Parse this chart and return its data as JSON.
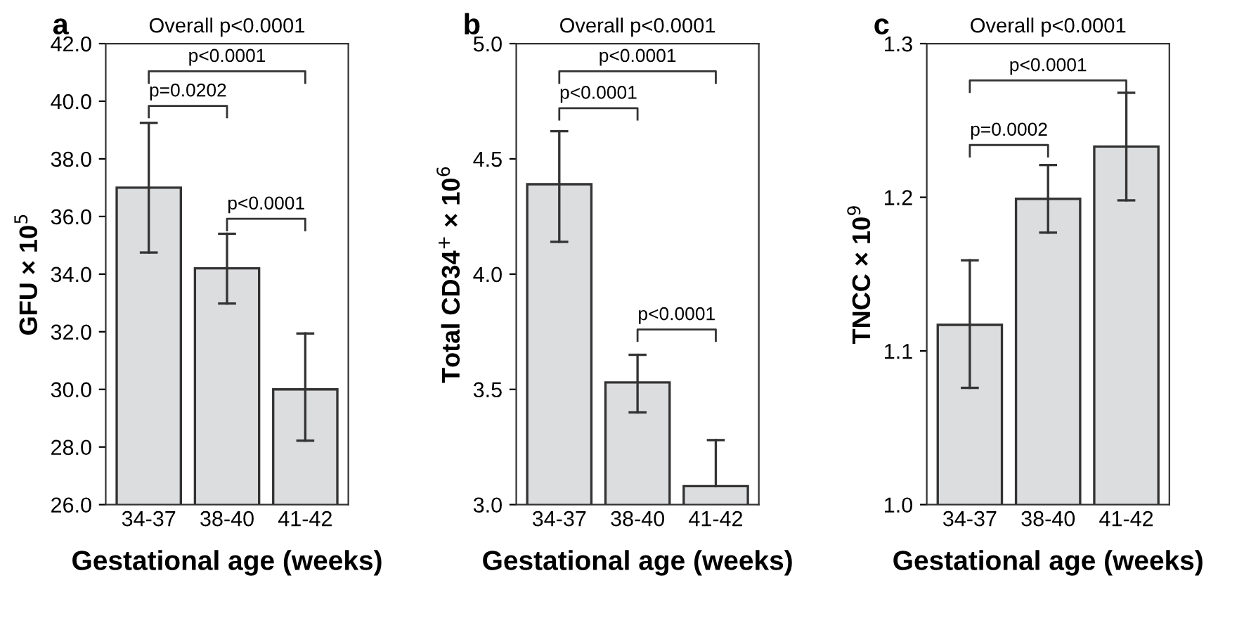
{
  "chart_data": [
    {
      "type": "bar",
      "title": "a",
      "subtitle": "Overall p<0.0001",
      "xlabel": "Gestational age (weeks)",
      "ylabel": "GFU × 10$^{5}$",
      "categories": [
        "34-37",
        "38-40",
        "41-42"
      ],
      "series": [
        {
          "color": "#dcdddf",
          "values": [
            37.0,
            34.2,
            30.0
          ],
          "errors": [
            [
              34.75,
              39.25
            ],
            [
              32.98,
              35.4
            ],
            [
              28.22,
              31.94
            ]
          ]
        }
      ],
      "ylim": [
        26,
        42
      ],
      "yticks": [
        {
          "value": 26,
          "label": "26.0"
        },
        {
          "value": 28,
          "label": "28.0"
        },
        {
          "value": 30,
          "label": "30.0"
        },
        {
          "value": 32,
          "label": "32.0"
        },
        {
          "value": 34,
          "label": "34.0"
        },
        {
          "value": 36,
          "label": "36.0"
        },
        {
          "value": 38,
          "label": "38.0"
        },
        {
          "value": 40,
          "label": "40.0"
        },
        {
          "value": 42,
          "label": "42.0"
        }
      ],
      "annotations": [
        "p<0.0001",
        "p=0.0202",
        "p<0.0001"
      ]
    },
    {
      "type": "bar",
      "title": "b",
      "subtitle": "Overall p<0.0001",
      "xlabel": "Gestational age (weeks)",
      "ylabel": "Total CD34$^{+}$ × 10$^{6}$",
      "categories": [
        "34-37",
        "38-40",
        "41-42"
      ],
      "series": [
        {
          "color": "#dcdddf",
          "values": [
            4.39,
            3.53,
            3.08
          ],
          "errors": [
            [
              4.14,
              4.62
            ],
            [
              3.4,
              3.65
            ],
            [
              3.08,
              3.28
            ]
          ]
        }
      ],
      "ylim": [
        3,
        5
      ],
      "yticks": [
        {
          "value": 3,
          "label": "3.0"
        },
        {
          "value": 3.5,
          "label": "3.5"
        },
        {
          "value": 4,
          "label": "4.0"
        },
        {
          "value": 4.5,
          "label": "4.5"
        },
        {
          "value": 5,
          "label": "5.0"
        }
      ],
      "annotations": [
        "p<0.0001",
        "p<0.0001",
        "p<0.0001"
      ]
    },
    {
      "type": "bar",
      "title": "c",
      "subtitle": "Overall p<0.0001",
      "xlabel": "Gestational age (weeks)",
      "ylabel": "TNCC × 10$^{9}$",
      "categories": [
        "34-37",
        "38-40",
        "41-42"
      ],
      "series": [
        {
          "color": "#dcdddf",
          "values": [
            1.117,
            1.199,
            1.233
          ],
          "errors": [
            [
              1.076,
              1.159
            ],
            [
              1.177,
              1.221
            ],
            [
              1.198,
              1.268
            ]
          ]
        }
      ],
      "ylim": [
        1.0,
        1.3
      ],
      "yticks": [
        {
          "value": 1.0,
          "label": "1.0"
        },
        {
          "value": 1.1,
          "label": "1.1"
        },
        {
          "value": 1.2,
          "label": "1.2"
        },
        {
          "value": 1.3,
          "label": "1.3"
        }
      ],
      "annotations": [
        "p<0.0001",
        "p=0.0002"
      ]
    }
  ]
}
